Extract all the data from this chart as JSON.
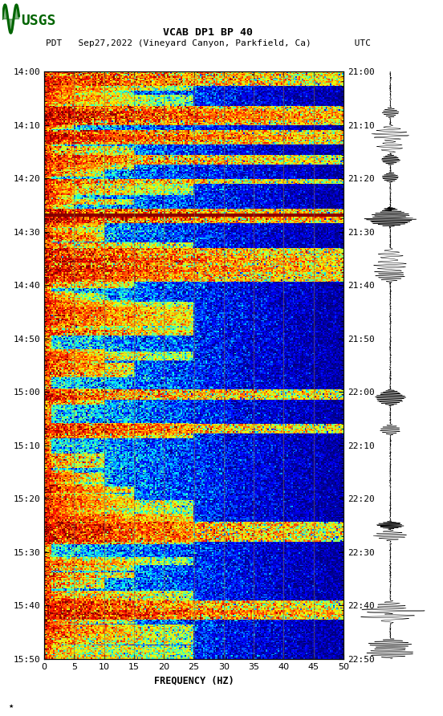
{
  "title_line1": "VCAB DP1 BP 40",
  "title_line2": "PDT   Sep27,2022 (Vineyard Canyon, Parkfield, Ca)        UTC",
  "xlabel": "FREQUENCY (HZ)",
  "freq_min": 0,
  "freq_max": 50,
  "freq_ticks": [
    0,
    5,
    10,
    15,
    20,
    25,
    30,
    35,
    40,
    45,
    50
  ],
  "time_left_labels": [
    "14:00",
    "14:10",
    "14:20",
    "14:30",
    "14:40",
    "14:50",
    "15:00",
    "15:10",
    "15:20",
    "15:30",
    "15:40",
    "15:50"
  ],
  "time_right_labels": [
    "21:00",
    "21:10",
    "21:20",
    "21:30",
    "21:40",
    "21:50",
    "22:00",
    "22:10",
    "22:20",
    "22:30",
    "22:40",
    "22:50"
  ],
  "background_color": "#ffffff",
  "spectrogram_bg": "#00008B",
  "colormap": "jet",
  "fig_width": 5.52,
  "fig_height": 8.92,
  "dpi": 100,
  "vertical_lines_freq": [
    5,
    10,
    15,
    20,
    25,
    30,
    35,
    40,
    45
  ],
  "vertical_line_color": "#807050",
  "vertical_line_alpha": 0.7
}
